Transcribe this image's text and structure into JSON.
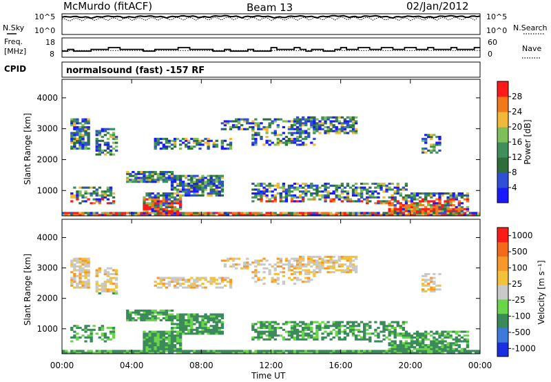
{
  "header": {
    "station": "McMurdo (fitACF)",
    "beam": "Beam 13",
    "date": "02/Jan/2012"
  },
  "params": {
    "nsky_label": "N.Sky",
    "nsearch_label": "N.Search",
    "freq_label_line1": "Freq.",
    "freq_label_line2": "[MHz]",
    "nave_label": "Nave",
    "cpid_label": "CPID",
    "cpid_text": "normalsound (fast) -157 RF",
    "noise_left_ticks": [
      "10^5",
      "10^0"
    ],
    "noise_right_ticks": [
      "10^5",
      "10^0"
    ],
    "freq_ticks": [
      "18",
      "8"
    ],
    "nave_ticks": [
      "60",
      "0"
    ]
  },
  "colors": {
    "power": [
      "#1a1aff",
      "#2f4fd6",
      "#2f6e3b",
      "#3e8f5a",
      "#7fbf5a",
      "#f2b83a",
      "#f07a1a",
      "#ff1a1a"
    ],
    "velocity": [
      "#1a2fe0",
      "#3d7ad9",
      "#3a8a5a",
      "#6ad44a",
      "#c9c9c9",
      "#f2c23a",
      "#f59a2a",
      "#f26a1a",
      "#ff1a1a"
    ]
  },
  "chart_data": [
    {
      "type": "line",
      "panel": "noise",
      "series": [
        {
          "name": "N.Sky",
          "style": "solid"
        },
        {
          "name": "N.Search",
          "style": "dotted"
        }
      ],
      "x": [
        "00:00",
        "02:00",
        "04:00",
        "06:00",
        "08:00",
        "10:00",
        "12:00",
        "14:00",
        "16:00",
        "18:00",
        "20:00",
        "22:00",
        "00:00"
      ],
      "y_scale": "log",
      "ylim": [
        1,
        100000
      ],
      "nsky_approx": [
        20000,
        25000,
        28000,
        30000,
        30000,
        35000,
        25000,
        30000,
        35000,
        30000,
        25000,
        30000,
        40000
      ],
      "nsearch_approx": [
        5000,
        8000,
        8000,
        10000,
        10000,
        12000,
        8000,
        10000,
        12000,
        10000,
        8000,
        10000,
        12000
      ]
    },
    {
      "type": "line",
      "panel": "frequency-nave",
      "series": [
        {
          "name": "Freq. [MHz]",
          "style": "solid"
        },
        {
          "name": "Nave",
          "style": "dotted"
        }
      ],
      "freq_ylim": [
        8,
        18
      ],
      "nave_ylim": [
        0,
        60
      ],
      "freq_approx_mhz": [
        11,
        12,
        11,
        12,
        11,
        11,
        12,
        11,
        12,
        12,
        12,
        12,
        11
      ],
      "nave_approx": [
        20,
        20,
        20,
        20,
        20,
        20,
        20,
        20,
        20,
        20,
        20,
        20,
        20
      ]
    },
    {
      "type": "heatmap",
      "panel": "power",
      "xlabel": "",
      "ylabel": "Slant Range [km]",
      "xlim": [
        "00:00",
        "00:00"
      ],
      "xticks": [
        "00:00",
        "04:00",
        "08:00",
        "12:00",
        "16:00",
        "20:00",
        "00:00"
      ],
      "yticks": [
        1000,
        2000,
        3000,
        4000
      ],
      "ylim": [
        180,
        4600
      ],
      "colorbar": {
        "label": "Power [dB]",
        "ticks": [
          4,
          8,
          12,
          16,
          20,
          24,
          28
        ],
        "range": [
          0,
          32
        ]
      }
    },
    {
      "type": "heatmap",
      "panel": "velocity",
      "xlabel": "Time UT",
      "ylabel": "Slant Range [km]",
      "xticks": [
        "00:00",
        "04:00",
        "08:00",
        "12:00",
        "16:00",
        "20:00",
        "00:00"
      ],
      "yticks": [
        1000,
        2000,
        3000,
        4000
      ],
      "ylim": [
        180,
        4600
      ],
      "colorbar": {
        "label": "Velocity [m s⁻¹]",
        "ticks": [
          "1000",
          "500",
          "100",
          "25",
          "-25",
          "-100",
          "-500",
          "-1000"
        ]
      }
    }
  ]
}
